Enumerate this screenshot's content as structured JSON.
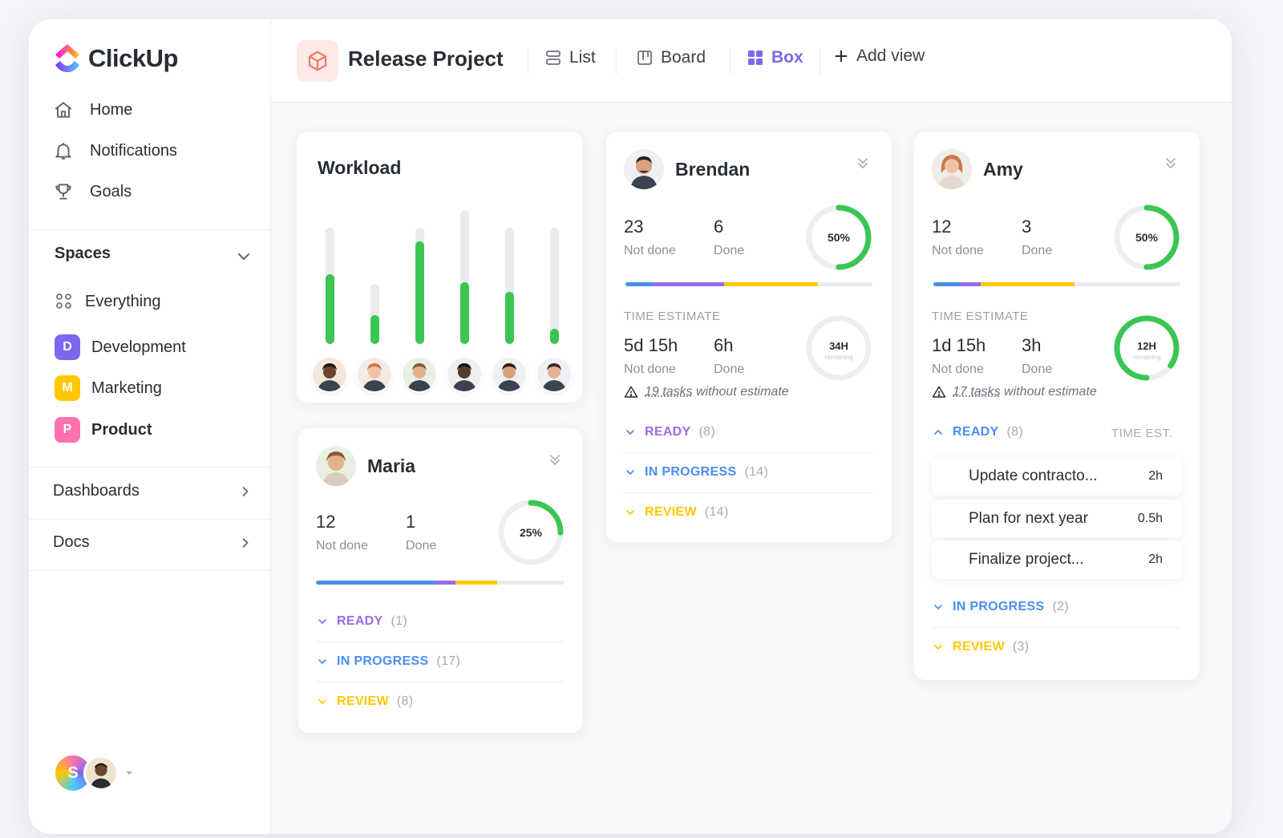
{
  "app": {
    "name": "ClickUp"
  },
  "nav": [
    {
      "label": "Home",
      "icon": "home-icon"
    },
    {
      "label": "Notifications",
      "icon": "bell-icon"
    },
    {
      "label": "Goals",
      "icon": "trophy-icon"
    }
  ],
  "spaces": {
    "title": "Spaces",
    "items": [
      {
        "label": "Everything",
        "badge": ""
      },
      {
        "label": "Development",
        "badge": "D",
        "color": "#7b68ee"
      },
      {
        "label": "Marketing",
        "badge": "M",
        "color": "#ffc800"
      },
      {
        "label": "Product",
        "badge": "P",
        "color": "#fd71af"
      }
    ]
  },
  "sections": {
    "dashboards": "Dashboards",
    "docs": "Docs"
  },
  "user": {
    "initial": "S"
  },
  "header": {
    "project": "Release Project",
    "views": {
      "list": "List",
      "board": "Board",
      "box": "Box",
      "add": "Add view"
    }
  },
  "colors": {
    "accent": "#7b68ee",
    "green": "#3bc653",
    "blue": "#4a90e2",
    "purple": "#9b6be8",
    "yellow": "#ffc800",
    "statusBlue": "#4a8ef0"
  },
  "workload": {
    "title": "Workload",
    "bars": [
      {
        "person": "person-1",
        "fill": 0.6
      },
      {
        "person": "person-2",
        "fill": 0.48
      },
      {
        "person": "person-3",
        "fill": 0.88
      },
      {
        "person": "person-4",
        "fill": 0.46
      },
      {
        "person": "person-5",
        "fill": 0.45
      },
      {
        "person": "person-6",
        "fill": 0.13
      }
    ]
  },
  "maria": {
    "name": "Maria",
    "not_done": "12",
    "not_done_label": "Not done",
    "done": "1",
    "done_label": "Done",
    "percent_label": "25%",
    "percent": 25,
    "progress": [
      {
        "color": "#4a90e2",
        "frac": 0.48
      },
      {
        "color": "#9b6be8",
        "frac": 0.08
      },
      {
        "color": "#ffc800",
        "frac": 0.17
      }
    ],
    "statuses": [
      {
        "label": "READY",
        "count": "(1)",
        "color": "#9b6be8"
      },
      {
        "label": "IN PROGRESS",
        "count": "(17)",
        "color": "#4a8ef0"
      },
      {
        "label": "REVIEW",
        "count": "(8)",
        "color": "#ffc800"
      }
    ]
  },
  "brendan": {
    "name": "Brendan",
    "not_done": "23",
    "not_done_label": "Not done",
    "done": "6",
    "done_label": "Done",
    "percent_label": "50%",
    "percent": 50,
    "progress": [
      {
        "color": "#4a90e2",
        "frac": 0.11
      },
      {
        "color": "#9b6be8",
        "frac": 0.29
      },
      {
        "color": "#ffc800",
        "frac": 0.38
      }
    ],
    "time_label": "TIME ESTIMATE",
    "time_not_done": "5d 15h",
    "time_done": "6h",
    "remaining": "34H",
    "remaining_label": "remaining",
    "remaining_frac": 0,
    "warning_count": "19 tasks",
    "warning_text": "without estimate",
    "statuses": [
      {
        "label": "READY",
        "count": "(8)",
        "color": "#9b6be8"
      },
      {
        "label": "IN PROGRESS",
        "count": "(14)",
        "color": "#4a8ef0"
      },
      {
        "label": "REVIEW",
        "count": "(14)",
        "color": "#ffc800"
      }
    ]
  },
  "amy": {
    "name": "Amy",
    "not_done": "12",
    "not_done_label": "Not done",
    "done": "3",
    "done_label": "Done",
    "percent_label": "50%",
    "percent": 50,
    "progress": [
      {
        "color": "#4a90e2",
        "frac": 0.11
      },
      {
        "color": "#9b6be8",
        "frac": 0.08
      },
      {
        "color": "#ffc800",
        "frac": 0.38
      }
    ],
    "time_label": "TIME ESTIMATE",
    "time_not_done": "1d 15h",
    "time_done": "3h",
    "remaining": "12H",
    "remaining_label": "remaining",
    "remaining_frac": 0.85,
    "warning_count": "17 tasks",
    "warning_text": "without estimate",
    "ready": {
      "label": "READY",
      "count": "(8)",
      "time_est": "TIME EST."
    },
    "tasks": [
      {
        "name": "Update contracto...",
        "est": "2h"
      },
      {
        "name": "Plan for next year",
        "est": "0.5h"
      },
      {
        "name": "Finalize project...",
        "est": "2h"
      }
    ],
    "statuses": [
      {
        "label": "IN PROGRESS",
        "count": "(2)",
        "color": "#4a8ef0"
      },
      {
        "label": "REVIEW",
        "count": "(3)",
        "color": "#ffc800"
      }
    ]
  }
}
